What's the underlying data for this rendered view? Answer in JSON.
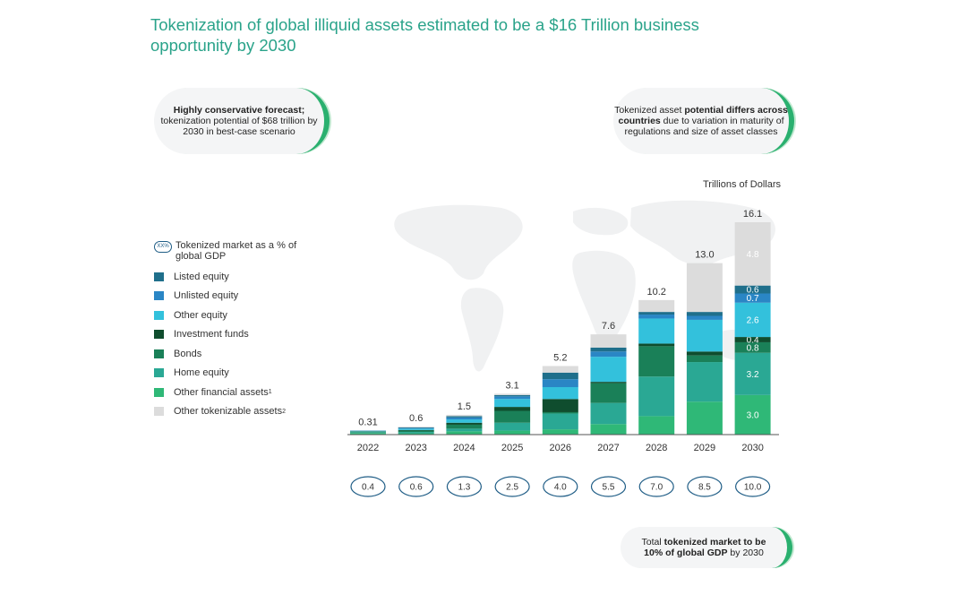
{
  "title": "Tokenization of global illiquid assets estimated to be a $16 Trillion business opportunity by 2030",
  "callouts": {
    "left_bold": "Highly conservative forecast;",
    "left_rest": "tokenization potential of $68 trillion by 2030 in best-case scenario",
    "right_pre": "Tokenized asset ",
    "right_bold": "potential differs across countries",
    "right_rest": " due to variation in maturity of regulations and size of asset classes",
    "bottom_pre": "Total ",
    "bottom_bold1": "tokenized market to be",
    "bottom_bold2": "10% of global GDP",
    "bottom_rest": " by 2030"
  },
  "units": "Trillions of Dollars",
  "legend": {
    "gdp_symbol": "XX%",
    "gdp_label": "Tokenized market as a % of global GDP",
    "items": [
      {
        "label": "Listed equity",
        "color": "#1f6f8b"
      },
      {
        "label": "Unlisted equity",
        "color": "#2a86c5"
      },
      {
        "label": "Other equity",
        "color": "#33c1dc"
      },
      {
        "label": "Investment funds",
        "color": "#0f4d2e"
      },
      {
        "label": "Bonds",
        "color": "#1a8058"
      },
      {
        "label": "Home equity",
        "color": "#2aa894"
      },
      {
        "label": "Other financial assets",
        "sup": "1",
        "color": "#2fb877"
      },
      {
        "label": "Other tokenizable assets",
        "sup": "2",
        "color": "#dcdcdc"
      }
    ]
  },
  "chart_data": {
    "type": "bar",
    "stacked": true,
    "categories": [
      "2022",
      "2023",
      "2024",
      "2025",
      "2026",
      "2027",
      "2028",
      "2029",
      "2030"
    ],
    "totals": [
      0.31,
      0.6,
      1.5,
      3.1,
      5.2,
      7.6,
      10.2,
      13.0,
      16.1
    ],
    "total_labels": [
      "0.31",
      "0.6",
      "1.5",
      "3.1",
      "5.2",
      "7.6",
      "10.2",
      "13.0",
      "16.1"
    ],
    "gdp_percent": [
      "0.4",
      "0.6",
      "1.3",
      "2.5",
      "4.0",
      "5.5",
      "7.0",
      "8.5",
      "10.0"
    ],
    "series": [
      {
        "name": "Other financial assets",
        "color": "#2fb877",
        "values": [
          0.12,
          0.1,
          0.25,
          0.3,
          0.4,
          0.8,
          1.4,
          2.5,
          3.0
        ]
      },
      {
        "name": "Home equity",
        "color": "#2aa894",
        "values": [
          0.06,
          0.1,
          0.2,
          0.6,
          1.2,
          1.6,
          3.0,
          3.0,
          3.2
        ]
      },
      {
        "name": "Bonds",
        "color": "#1a8058",
        "values": [
          0.05,
          0.1,
          0.3,
          0.9,
          0.1,
          1.5,
          2.3,
          0.5,
          0.8
        ]
      },
      {
        "name": "Investment funds",
        "color": "#0f4d2e",
        "values": [
          0.02,
          0.05,
          0.15,
          0.3,
          1.0,
          0.1,
          0.2,
          0.3,
          0.4
        ]
      },
      {
        "name": "Other equity",
        "color": "#33c1dc",
        "values": [
          0.03,
          0.1,
          0.25,
          0.6,
          0.9,
          1.9,
          1.9,
          2.4,
          2.6
        ]
      },
      {
        "name": "Unlisted equity",
        "color": "#2a86c5",
        "values": [
          0.02,
          0.05,
          0.15,
          0.2,
          0.6,
          0.4,
          0.3,
          0.3,
          0.7
        ]
      },
      {
        "name": "Listed equity",
        "color": "#1f6f8b",
        "values": [
          0.01,
          0.05,
          0.1,
          0.1,
          0.5,
          0.3,
          0.2,
          0.3,
          0.6
        ]
      },
      {
        "name": "Other tokenizable assets",
        "color": "#dcdcdc",
        "values": [
          0.0,
          0.05,
          0.1,
          0.1,
          0.5,
          1.0,
          0.9,
          3.7,
          4.8
        ]
      }
    ],
    "labels_2030": [
      "3.0",
      "3.2",
      "0.8",
      "0.4",
      "2.6",
      "0.7",
      "0.6",
      "4.8"
    ],
    "ylim": [
      0,
      16.1
    ],
    "grid": false
  }
}
